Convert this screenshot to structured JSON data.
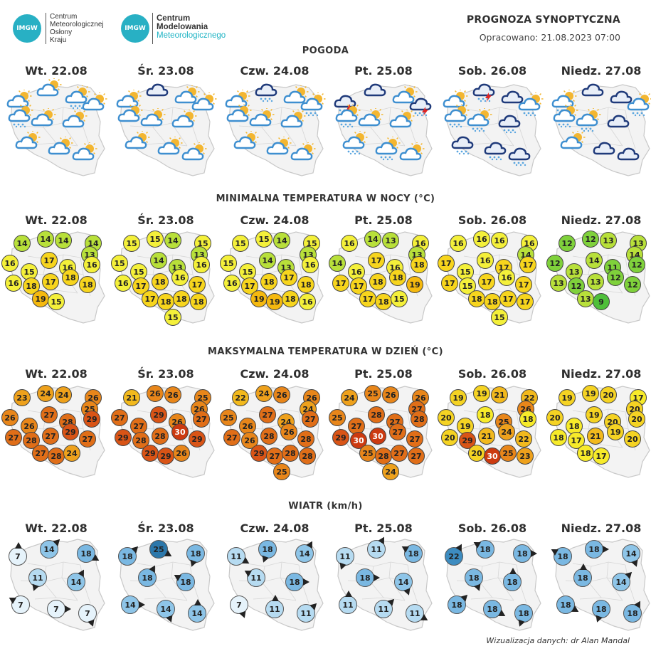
{
  "logos": {
    "imgw_abbrev": "IMGW",
    "imgw_lines": [
      "Centrum",
      "Meteorologicznej",
      "Osłony",
      "Kraju"
    ],
    "cmm_abbrev": "IMGW",
    "cmm_lines": [
      "Centrum",
      "Modelowania"
    ],
    "cmm_highlight": "Meteorologicznego"
  },
  "header": {
    "title": "PROGNOZA SYNOPTYCZNA",
    "prepared": "Opracowano: 21.08.2023 07:00"
  },
  "days": [
    "Wt. 22.08",
    "Śr. 23.08",
    "Czw. 24.08",
    "Pt. 25.08",
    "Sob. 26.08",
    "Niedz. 27.08"
  ],
  "sections": {
    "weather": "POGODA",
    "tmin": "MINIMALNA TEMPERATURA W NOCY (°C)",
    "tmax": "MAKSYMALNA TEMPERATURA W DZIEŃ (°C)",
    "wind": "WIATR (km/h)"
  },
  "weather_icons": [
    [
      "partly-cloudy",
      "partly-cloudy",
      "cloud-rain-sun",
      "partly-cloudy",
      "partly-cloudy",
      "partly-cloudy",
      "partly-cloudy",
      "partly-cloudy",
      "partly-cloudy",
      "cloud-rain-sun"
    ],
    [
      "partly-cloudy",
      "dark-cloud",
      "partly-cloudy",
      "partly-cloudy",
      "partly-cloudy",
      "partly-cloudy",
      "partly-cloudy",
      "partly-cloudy",
      "partly-cloudy",
      "partly-cloudy"
    ],
    [
      "partly-cloudy",
      "dark-cloud-rain",
      "partly-cloudy",
      "cloud-rain-sun",
      "partly-cloudy",
      "partly-cloudy",
      "partly-cloudy",
      "partly-cloudy",
      "partly-cloudy",
      "partly-cloudy"
    ],
    [
      "storm",
      "dark-cloud",
      "partly-cloudy",
      "storm",
      "partly-cloudy",
      "partly-cloudy",
      "cloud-rain-sun",
      "cloud-rain-sun",
      "partly-cloudy",
      "cloud-rain-sun"
    ],
    [
      "partly-cloudy",
      "storm",
      "dark-cloud",
      "cloud-rain-sun",
      "cloud-rain-sun",
      "dark-cloud-rain",
      "dark-cloud-rain",
      "dark-cloud-rain",
      "dark-cloud-rain",
      "cloud-rain-sun"
    ],
    [
      "cloud-rain-sun",
      "dark-cloud",
      "dark-cloud",
      "cloud-rain-sun",
      "cloud-rain-sun",
      "dark-cloud",
      "partly-cloudy",
      "dark-cloud",
      "dark-cloud",
      "cloud-rain-sun"
    ]
  ],
  "tmin": [
    [
      14,
      14,
      14,
      14,
      13,
      16,
      15,
      17,
      16,
      16,
      16,
      18,
      17,
      18,
      18,
      19,
      15
    ],
    [
      15,
      15,
      14,
      15,
      13,
      15,
      15,
      14,
      13,
      16,
      16,
      17,
      18,
      16,
      17,
      17,
      18,
      18,
      18,
      15
    ],
    [
      15,
      15,
      14,
      15,
      13,
      15,
      15,
      14,
      13,
      16,
      16,
      17,
      18,
      17,
      18,
      19,
      19,
      18,
      16
    ],
    [
      16,
      14,
      13,
      16,
      13,
      14,
      16,
      17,
      16,
      18,
      17,
      17,
      18,
      18,
      19,
      17,
      18,
      15
    ],
    [
      16,
      16,
      16,
      16,
      14,
      17,
      15,
      16,
      17,
      17,
      17,
      15,
      17,
      16,
      17,
      18,
      18,
      17,
      17,
      15
    ],
    [
      12,
      12,
      13,
      13,
      14,
      12,
      13,
      14,
      11,
      12,
      13,
      12,
      13,
      12,
      12,
      13,
      9
    ]
  ],
  "tmax": [
    [
      23,
      24,
      24,
      26,
      25,
      26,
      26,
      27,
      28,
      29,
      27,
      28,
      27,
      29,
      27,
      27,
      28,
      24
    ],
    [
      21,
      26,
      26,
      25,
      26,
      27,
      27,
      29,
      26,
      27,
      29,
      28,
      28,
      30,
      29,
      29,
      29,
      26
    ],
    [
      22,
      24,
      26,
      26,
      24,
      25,
      26,
      27,
      24,
      27,
      27,
      26,
      28,
      26,
      28,
      29,
      27,
      28,
      28,
      25
    ],
    [
      24,
      25,
      26,
      26,
      27,
      25,
      27,
      28,
      27,
      28,
      29,
      30,
      30,
      27,
      27,
      25,
      28,
      27,
      27,
      24
    ],
    [
      19,
      19,
      21,
      22,
      26,
      20,
      19,
      18,
      25,
      18,
      20,
      29,
      21,
      24,
      22,
      20,
      30,
      25,
      23
    ],
    [
      19,
      19,
      20,
      17,
      20,
      20,
      18,
      19,
      20,
      20,
      18,
      17,
      21,
      19,
      20,
      18,
      17
    ]
  ],
  "wind": [
    [
      7,
      14,
      18,
      11,
      14,
      7,
      7,
      7
    ],
    [
      18,
      25,
      18,
      18,
      18,
      14,
      14,
      14
    ],
    [
      11,
      18,
      14,
      11,
      18,
      7,
      11,
      11
    ],
    [
      11,
      11,
      18,
      18,
      14,
      11,
      11,
      11
    ],
    [
      22,
      18,
      18,
      18,
      18,
      18,
      18,
      18
    ],
    [
      18,
      18,
      14,
      18,
      14,
      18,
      18,
      18
    ]
  ],
  "footer": "Wizualizacja danych: dr Alan Mandal",
  "colors": {
    "map_fill": "#f3f3f3",
    "map_border": "#c8c8c8",
    "cloud_light": "#3e8fd0",
    "cloud_dark": "#1f3a7a",
    "sun": "#f3b630",
    "rain": "#5aa6e0",
    "lightning": "#e02525"
  }
}
